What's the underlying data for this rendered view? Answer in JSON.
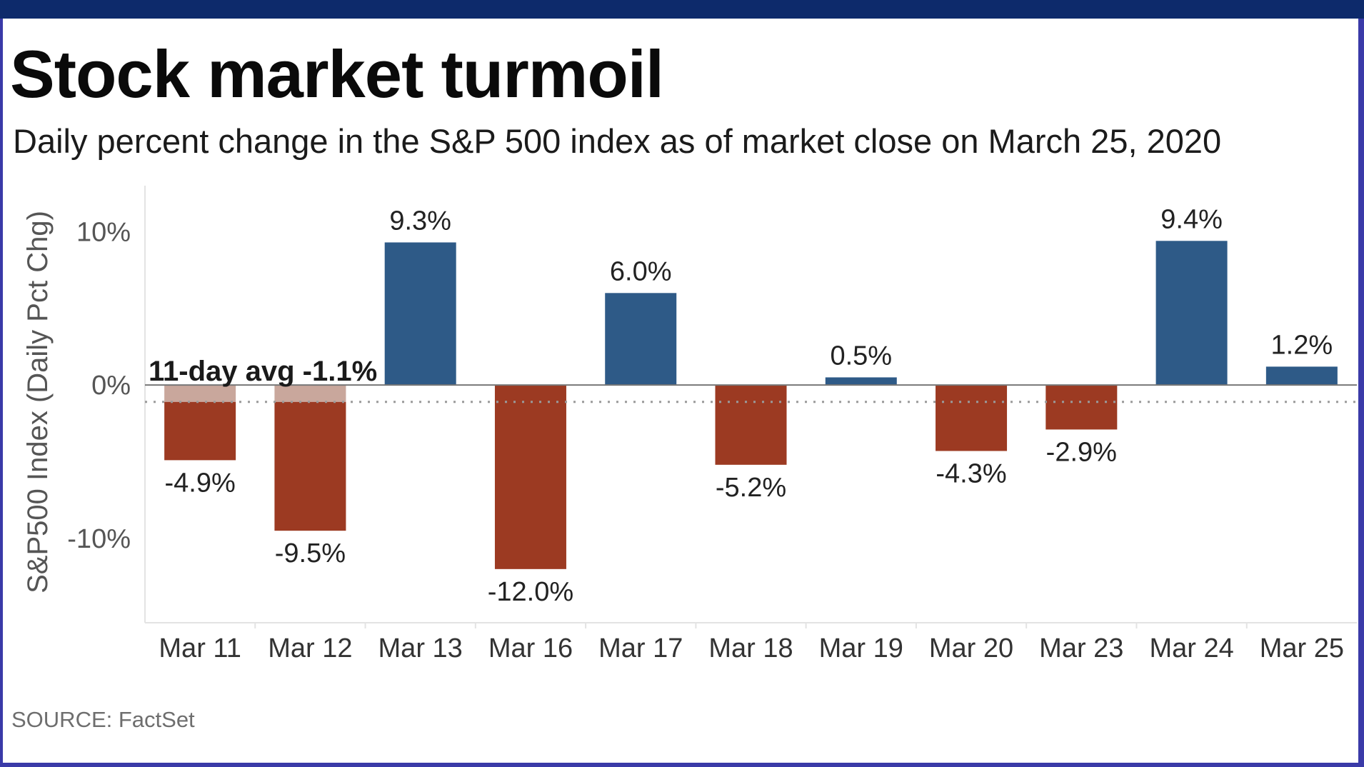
{
  "chart_data": {
    "type": "bar",
    "title": "Stock market turmoil",
    "subtitle": "Daily percent change in the S&P 500 index as of market close on March 25, 2020",
    "ylabel": "S&P500 Index (Daily Pct Chg)",
    "xlabel": "",
    "categories": [
      "Mar 11",
      "Mar 12",
      "Mar 13",
      "Mar 16",
      "Mar 17",
      "Mar 18",
      "Mar 19",
      "Mar 20",
      "Mar 23",
      "Mar 24",
      "Mar 25"
    ],
    "values": [
      -4.9,
      -9.5,
      9.3,
      -12.0,
      6.0,
      -5.2,
      0.5,
      -4.3,
      -2.9,
      9.4,
      1.2
    ],
    "data_labels": [
      "-4.9%",
      "-9.5%",
      "9.3%",
      "-12.0%",
      "6.0%",
      "-5.2%",
      "0.5%",
      "-4.3%",
      "-2.9%",
      "9.4%",
      "1.2%"
    ],
    "ylim": [
      -15.5,
      13
    ],
    "yticks": [
      10,
      0,
      -10
    ],
    "ytick_labels": [
      "10%",
      "0%",
      "-10%"
    ],
    "grid": false,
    "average": {
      "value": -1.1,
      "label": "11-day avg -1.1%"
    },
    "colors": {
      "positive": "#2e5a87",
      "negative": "#9c3a22",
      "average_line": "#9a9a9a"
    },
    "source": "SOURCE: FactSet"
  }
}
